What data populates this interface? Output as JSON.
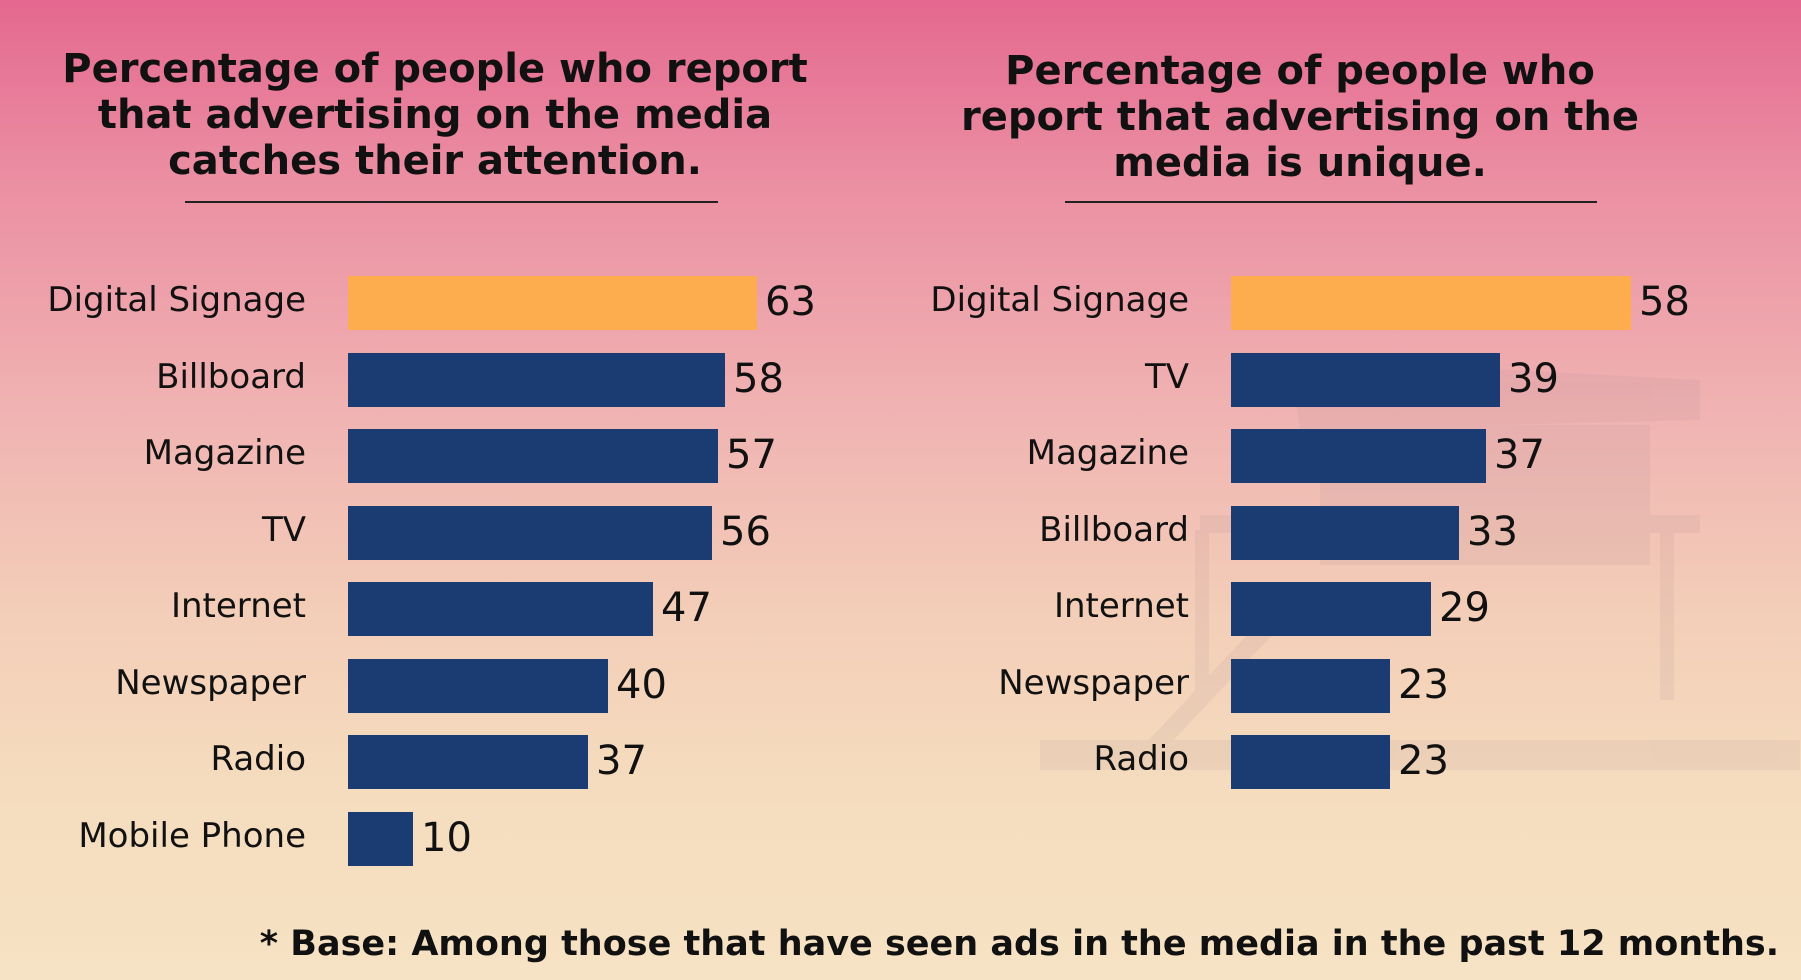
{
  "colors": {
    "highlight": "#fdad4e",
    "bar": "#1b3c72",
    "text": "#111111"
  },
  "chart_data": [
    {
      "type": "bar",
      "orientation": "horizontal",
      "title": "Percentage of people who report that advertising on the media catches their attention.",
      "categories": [
        "Digital Signage",
        "Billboard",
        "Magazine",
        "TV",
        "Internet",
        "Newspaper",
        "Radio",
        "Mobile Phone"
      ],
      "values": [
        63,
        58,
        57,
        56,
        47,
        40,
        37,
        10
      ],
      "highlight_category": "Digital Signage",
      "xlim": [
        0,
        63
      ],
      "grid": false,
      "xlabel": "",
      "ylabel": ""
    },
    {
      "type": "bar",
      "orientation": "horizontal",
      "title": "Percentage of people who report that advertising on the media is unique.",
      "categories": [
        "Digital Signage",
        "TV",
        "Magazine",
        "Billboard",
        "Internet",
        "Newspaper",
        "Radio"
      ],
      "values": [
        58,
        39,
        37,
        33,
        29,
        23,
        23
      ],
      "highlight_category": "Digital Signage",
      "xlim": [
        0,
        58
      ],
      "grid": false,
      "xlabel": "",
      "ylabel": ""
    }
  ],
  "footnote": "* Base: Among those that have seen ads in the media in the past 12 months."
}
